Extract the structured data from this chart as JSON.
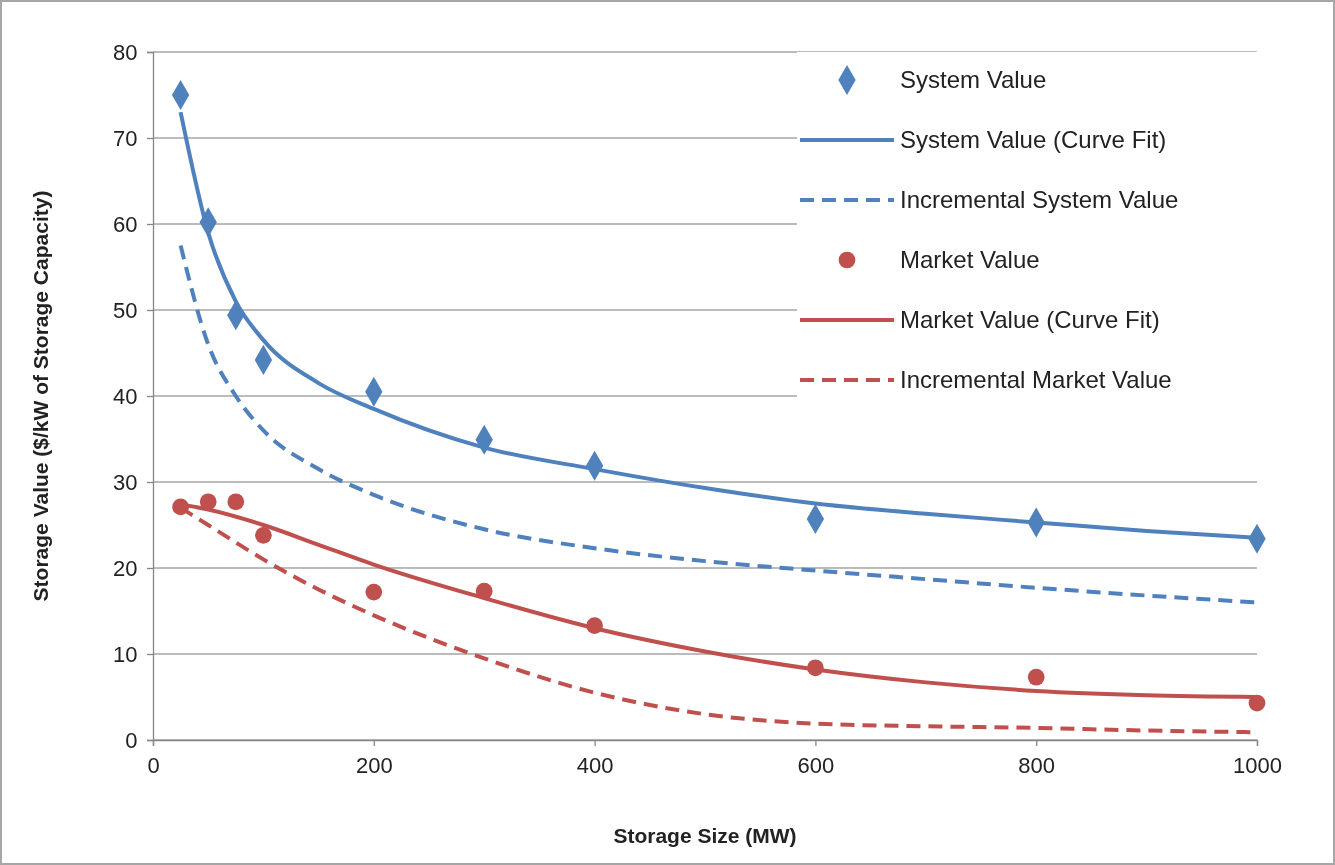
{
  "chart_data": {
    "type": "line",
    "xlabel": "Storage Size  (MW)",
    "ylabel": "Storage Value  ($/kW of Storage Capacity)",
    "xlim": [
      0,
      1000
    ],
    "xticks": [
      0,
      200,
      400,
      600,
      800,
      1000
    ],
    "ylim": [
      0,
      80
    ],
    "yticks": [
      0,
      10,
      20,
      30,
      40,
      50,
      60,
      70,
      80
    ],
    "grid": "y",
    "legend": "top right",
    "series": [
      {
        "name": "System Value",
        "type": "scatter",
        "marker": "diamond",
        "color": "#4f81bd",
        "x": [
          25,
          50,
          75,
          100,
          200,
          300,
          400,
          600,
          800,
          1000
        ],
        "values": [
          75.0,
          60.2,
          49.4,
          44.2,
          40.5,
          34.9,
          31.9,
          25.7,
          25.3,
          23.4
        ]
      },
      {
        "name": "System Value  (Curve Fit)",
        "line_style": "solid",
        "color": "#4f81bd",
        "x": [
          25,
          50,
          75,
          100,
          150,
          200,
          300,
          400,
          500,
          600,
          700,
          800,
          900,
          1000
        ],
        "values": [
          73,
          59,
          51,
          46.5,
          41.5,
          38.5,
          34,
          31.5,
          29.3,
          27.5,
          26.3,
          25.3,
          24.3,
          23.5
        ]
      },
      {
        "name": "Incremental System Value",
        "line_style": "dashed",
        "color": "#4f81bd",
        "x": [
          25,
          50,
          75,
          100,
          150,
          200,
          300,
          400,
          500,
          600,
          700,
          800,
          900,
          1000
        ],
        "values": [
          57.5,
          46,
          40,
          36,
          31.5,
          28.5,
          24.5,
          22.3,
          20.8,
          19.7,
          18.7,
          17.7,
          16.8,
          16.0
        ]
      },
      {
        "name": "Market Value",
        "type": "scatter",
        "marker": "circle",
        "color": "#c0504d",
        "x": [
          25,
          50,
          75,
          100,
          200,
          300,
          400,
          600,
          800,
          1000
        ],
        "values": [
          27.1,
          27.7,
          27.7,
          23.8,
          17.2,
          17.3,
          13.3,
          8.4,
          7.3,
          4.3
        ]
      },
      {
        "name": "Market Value (Curve Fit)",
        "line_style": "solid",
        "color": "#c0504d",
        "x": [
          25,
          50,
          100,
          150,
          200,
          300,
          400,
          500,
          600,
          700,
          800,
          900,
          1000
        ],
        "values": [
          27.4,
          26.8,
          25,
          22.7,
          20.4,
          16.5,
          13,
          10.3,
          8.2,
          6.7,
          5.7,
          5.2,
          5.0
        ]
      },
      {
        "name": "Incremental Market Value",
        "line_style": "dashed",
        "color": "#c0504d",
        "x": [
          25,
          50,
          100,
          150,
          200,
          300,
          400,
          500,
          600,
          700,
          800,
          900,
          1000
        ],
        "values": [
          27,
          25,
          21,
          17.5,
          14.5,
          9.5,
          5.5,
          3,
          1.9,
          1.6,
          1.4,
          1.1,
          0.9
        ]
      }
    ]
  }
}
